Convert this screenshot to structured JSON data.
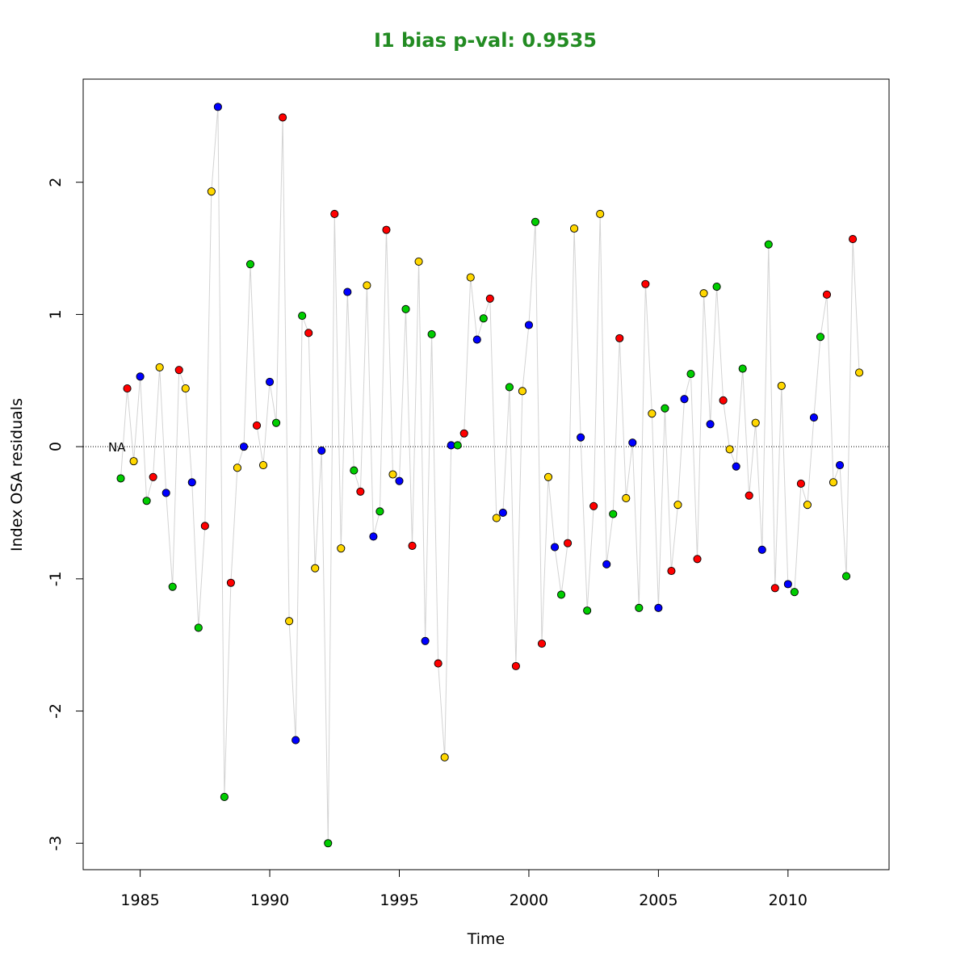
{
  "colors": {
    "title": "#228B22",
    "series_line": "#d3d3d3",
    "reference_line": "#000000",
    "point_outline": "#000000",
    "red": "#FF0000",
    "yellow": "#FFD700",
    "green": "#00CD00",
    "blue": "#0000FF"
  },
  "chart_data": {
    "type": "scatter",
    "title": "I1 bias p-val: 0.9535",
    "xlabel": "Time",
    "ylabel": "Index OSA residuals",
    "xlim": [
      1982.8,
      2013.9
    ],
    "ylim": [
      -3.2,
      2.78
    ],
    "x_ticks": [
      1985,
      1990,
      1995,
      2000,
      2005,
      2010
    ],
    "y_ticks": [
      -3,
      -2,
      -1,
      0,
      1,
      2
    ],
    "grid": false,
    "legend": "none",
    "reference_line": {
      "y": 0,
      "style": "dotted"
    },
    "annotation": {
      "text": "NA",
      "x": 1984.1,
      "y": 0
    },
    "connected": true,
    "points": [
      {
        "x": 1984.25,
        "y": -0.24,
        "color": "green"
      },
      {
        "x": 1984.5,
        "y": 0.44,
        "color": "red"
      },
      {
        "x": 1984.75,
        "y": -0.11,
        "color": "yellow"
      },
      {
        "x": 1985.0,
        "y": 0.53,
        "color": "blue"
      },
      {
        "x": 1985.25,
        "y": -0.41,
        "color": "green"
      },
      {
        "x": 1985.5,
        "y": -0.23,
        "color": "red"
      },
      {
        "x": 1985.75,
        "y": 0.6,
        "color": "yellow"
      },
      {
        "x": 1986.0,
        "y": -0.35,
        "color": "blue"
      },
      {
        "x": 1986.25,
        "y": -1.06,
        "color": "green"
      },
      {
        "x": 1986.5,
        "y": 0.58,
        "color": "red"
      },
      {
        "x": 1986.75,
        "y": 0.44,
        "color": "yellow"
      },
      {
        "x": 1987.0,
        "y": -0.27,
        "color": "blue"
      },
      {
        "x": 1987.25,
        "y": -1.37,
        "color": "green"
      },
      {
        "x": 1987.5,
        "y": -0.6,
        "color": "red"
      },
      {
        "x": 1987.75,
        "y": 1.93,
        "color": "yellow"
      },
      {
        "x": 1988.0,
        "y": 2.57,
        "color": "blue"
      },
      {
        "x": 1988.25,
        "y": -2.65,
        "color": "green"
      },
      {
        "x": 1988.5,
        "y": -1.03,
        "color": "red"
      },
      {
        "x": 1988.75,
        "y": -0.16,
        "color": "yellow"
      },
      {
        "x": 1989.0,
        "y": 0.0,
        "color": "blue"
      },
      {
        "x": 1989.25,
        "y": 1.38,
        "color": "green"
      },
      {
        "x": 1989.5,
        "y": 0.16,
        "color": "red"
      },
      {
        "x": 1989.75,
        "y": -0.14,
        "color": "yellow"
      },
      {
        "x": 1990.0,
        "y": 0.49,
        "color": "blue"
      },
      {
        "x": 1990.25,
        "y": 0.18,
        "color": "green"
      },
      {
        "x": 1990.5,
        "y": 2.49,
        "color": "red"
      },
      {
        "x": 1990.75,
        "y": -1.32,
        "color": "yellow"
      },
      {
        "x": 1991.0,
        "y": -2.22,
        "color": "blue"
      },
      {
        "x": 1991.25,
        "y": 0.99,
        "color": "green"
      },
      {
        "x": 1991.5,
        "y": 0.86,
        "color": "red"
      },
      {
        "x": 1991.75,
        "y": -0.92,
        "color": "yellow"
      },
      {
        "x": 1992.0,
        "y": -0.03,
        "color": "blue"
      },
      {
        "x": 1992.25,
        "y": -3.0,
        "color": "green"
      },
      {
        "x": 1992.5,
        "y": 1.76,
        "color": "red"
      },
      {
        "x": 1992.75,
        "y": -0.77,
        "color": "yellow"
      },
      {
        "x": 1993.0,
        "y": 1.17,
        "color": "blue"
      },
      {
        "x": 1993.25,
        "y": -0.18,
        "color": "green"
      },
      {
        "x": 1993.5,
        "y": -0.34,
        "color": "red"
      },
      {
        "x": 1993.75,
        "y": 1.22,
        "color": "yellow"
      },
      {
        "x": 1994.0,
        "y": -0.68,
        "color": "blue"
      },
      {
        "x": 1994.25,
        "y": -0.49,
        "color": "green"
      },
      {
        "x": 1994.5,
        "y": 1.64,
        "color": "red"
      },
      {
        "x": 1994.75,
        "y": -0.21,
        "color": "yellow"
      },
      {
        "x": 1995.0,
        "y": -0.26,
        "color": "blue"
      },
      {
        "x": 1995.25,
        "y": 1.04,
        "color": "green"
      },
      {
        "x": 1995.5,
        "y": -0.75,
        "color": "red"
      },
      {
        "x": 1995.75,
        "y": 1.4,
        "color": "yellow"
      },
      {
        "x": 1996.0,
        "y": -1.47,
        "color": "blue"
      },
      {
        "x": 1996.25,
        "y": 0.85,
        "color": "green"
      },
      {
        "x": 1996.5,
        "y": -1.64,
        "color": "red"
      },
      {
        "x": 1996.75,
        "y": -2.35,
        "color": "yellow"
      },
      {
        "x": 1997.0,
        "y": 0.01,
        "color": "blue"
      },
      {
        "x": 1997.25,
        "y": 0.01,
        "color": "green"
      },
      {
        "x": 1997.5,
        "y": 0.1,
        "color": "red"
      },
      {
        "x": 1997.75,
        "y": 1.28,
        "color": "yellow"
      },
      {
        "x": 1998.0,
        "y": 0.81,
        "color": "blue"
      },
      {
        "x": 1998.25,
        "y": 0.97,
        "color": "green"
      },
      {
        "x": 1998.5,
        "y": 1.12,
        "color": "red"
      },
      {
        "x": 1998.75,
        "y": -0.54,
        "color": "yellow"
      },
      {
        "x": 1999.0,
        "y": -0.5,
        "color": "blue"
      },
      {
        "x": 1999.25,
        "y": 0.45,
        "color": "green"
      },
      {
        "x": 1999.5,
        "y": -1.66,
        "color": "red"
      },
      {
        "x": 1999.75,
        "y": 0.42,
        "color": "yellow"
      },
      {
        "x": 2000.0,
        "y": 0.92,
        "color": "blue"
      },
      {
        "x": 2000.25,
        "y": 1.7,
        "color": "green"
      },
      {
        "x": 2000.5,
        "y": -1.49,
        "color": "red"
      },
      {
        "x": 2000.75,
        "y": -0.23,
        "color": "yellow"
      },
      {
        "x": 2001.0,
        "y": -0.76,
        "color": "blue"
      },
      {
        "x": 2001.25,
        "y": -1.12,
        "color": "green"
      },
      {
        "x": 2001.5,
        "y": -0.73,
        "color": "red"
      },
      {
        "x": 2001.75,
        "y": 1.65,
        "color": "yellow"
      },
      {
        "x": 2002.0,
        "y": 0.07,
        "color": "blue"
      },
      {
        "x": 2002.25,
        "y": -1.24,
        "color": "green"
      },
      {
        "x": 2002.5,
        "y": -0.45,
        "color": "red"
      },
      {
        "x": 2002.75,
        "y": 1.76,
        "color": "yellow"
      },
      {
        "x": 2003.0,
        "y": -0.89,
        "color": "blue"
      },
      {
        "x": 2003.25,
        "y": -0.51,
        "color": "green"
      },
      {
        "x": 2003.5,
        "y": 0.82,
        "color": "red"
      },
      {
        "x": 2003.75,
        "y": -0.39,
        "color": "yellow"
      },
      {
        "x": 2004.0,
        "y": 0.03,
        "color": "blue"
      },
      {
        "x": 2004.25,
        "y": -1.22,
        "color": "green"
      },
      {
        "x": 2004.5,
        "y": 1.23,
        "color": "red"
      },
      {
        "x": 2004.75,
        "y": 0.25,
        "color": "yellow"
      },
      {
        "x": 2005.0,
        "y": -1.22,
        "color": "blue"
      },
      {
        "x": 2005.25,
        "y": 0.29,
        "color": "green"
      },
      {
        "x": 2005.5,
        "y": -0.94,
        "color": "red"
      },
      {
        "x": 2005.75,
        "y": -0.44,
        "color": "yellow"
      },
      {
        "x": 2006.0,
        "y": 0.36,
        "color": "blue"
      },
      {
        "x": 2006.25,
        "y": 0.55,
        "color": "green"
      },
      {
        "x": 2006.5,
        "y": -0.85,
        "color": "red"
      },
      {
        "x": 2006.75,
        "y": 1.16,
        "color": "yellow"
      },
      {
        "x": 2007.0,
        "y": 0.17,
        "color": "blue"
      },
      {
        "x": 2007.25,
        "y": 1.21,
        "color": "green"
      },
      {
        "x": 2007.5,
        "y": 0.35,
        "color": "red"
      },
      {
        "x": 2007.75,
        "y": -0.02,
        "color": "yellow"
      },
      {
        "x": 2008.0,
        "y": -0.15,
        "color": "blue"
      },
      {
        "x": 2008.25,
        "y": 0.59,
        "color": "green"
      },
      {
        "x": 2008.5,
        "y": -0.37,
        "color": "red"
      },
      {
        "x": 2008.75,
        "y": 0.18,
        "color": "yellow"
      },
      {
        "x": 2009.0,
        "y": -0.78,
        "color": "blue"
      },
      {
        "x": 2009.25,
        "y": 1.53,
        "color": "green"
      },
      {
        "x": 2009.5,
        "y": -1.07,
        "color": "red"
      },
      {
        "x": 2009.75,
        "y": 0.46,
        "color": "yellow"
      },
      {
        "x": 2010.0,
        "y": -1.04,
        "color": "blue"
      },
      {
        "x": 2010.25,
        "y": -1.1,
        "color": "green"
      },
      {
        "x": 2010.5,
        "y": -0.28,
        "color": "red"
      },
      {
        "x": 2010.75,
        "y": -0.44,
        "color": "yellow"
      },
      {
        "x": 2011.0,
        "y": 0.22,
        "color": "blue"
      },
      {
        "x": 2011.25,
        "y": 0.83,
        "color": "green"
      },
      {
        "x": 2011.5,
        "y": 1.15,
        "color": "red"
      },
      {
        "x": 2011.75,
        "y": -0.27,
        "color": "yellow"
      },
      {
        "x": 2012.0,
        "y": -0.14,
        "color": "blue"
      },
      {
        "x": 2012.25,
        "y": -0.98,
        "color": "green"
      },
      {
        "x": 2012.5,
        "y": 1.57,
        "color": "red"
      },
      {
        "x": 2012.75,
        "y": 0.56,
        "color": "yellow"
      }
    ]
  }
}
